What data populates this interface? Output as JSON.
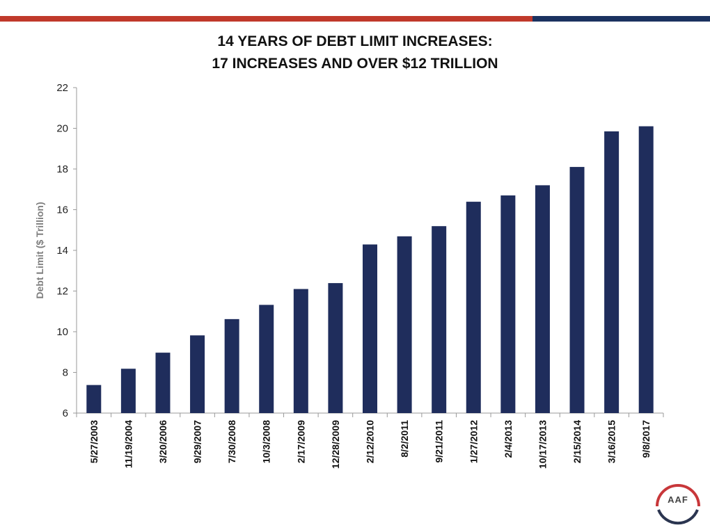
{
  "header": {
    "stripe_colors": [
      "#c0392b",
      "#1b3260"
    ]
  },
  "logo": {
    "text": "AAF",
    "colors": [
      "#c8373a",
      "#2b3550"
    ]
  },
  "chart_data": {
    "type": "bar",
    "title_lines": [
      "14 YEARS OF DEBT LIMIT INCREASES:",
      "17 INCREASES AND OVER $12 TRILLION"
    ],
    "xlabel": "",
    "ylabel": "Debt Limit ($ Trillion)",
    "ylim": [
      6,
      22
    ],
    "yticks": [
      6,
      8,
      10,
      12,
      14,
      16,
      18,
      20,
      22
    ],
    "grid": false,
    "bar_color": "#1f2d5c",
    "categories": [
      "5/27/2003",
      "11/19/2004",
      "3/20/2006",
      "9/29/2007",
      "7/30/2008",
      "10/3/2008",
      "2/17/2009",
      "12/28/2009",
      "2/12/2010",
      "8/2/2011",
      "9/21/2011",
      "1/27/2012",
      "2/4/2013",
      "10/17/2013",
      "2/15/2014",
      "3/16/2015",
      "9/8/2017"
    ],
    "values": [
      7.38,
      8.18,
      8.97,
      9.82,
      10.62,
      11.32,
      12.1,
      12.39,
      14.29,
      14.69,
      15.19,
      16.39,
      16.7,
      17.2,
      18.1,
      19.85,
      20.1
    ]
  }
}
